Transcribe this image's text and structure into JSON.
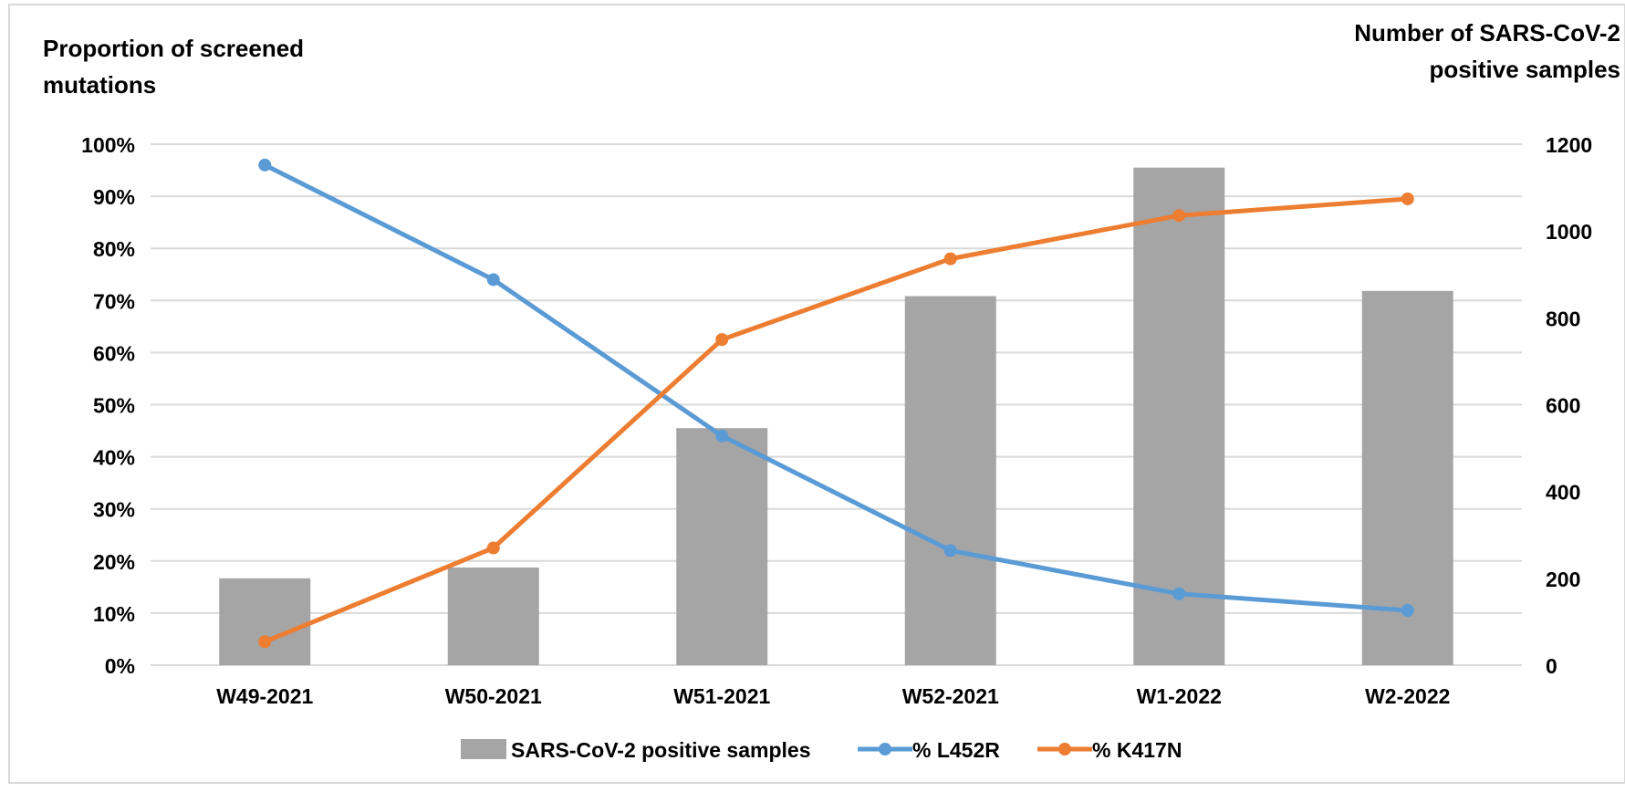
{
  "chart_data": {
    "type": "bar",
    "categories": [
      "W49-2021",
      "W50-2021",
      "W51-2021",
      "W52-2021",
      "W1-2022",
      "W2-2022"
    ],
    "series": [
      {
        "name": "SARS-CoV-2 positive samples",
        "type": "bar",
        "axis": "right",
        "values": [
          200,
          225,
          546,
          850,
          1146,
          862
        ]
      },
      {
        "name": "% L452R",
        "type": "line",
        "axis": "left",
        "values": [
          96,
          74,
          44,
          22,
          13.7,
          10.5
        ]
      },
      {
        "name": "% K417N",
        "type": "line",
        "axis": "left",
        "values": [
          4.5,
          22.5,
          62.5,
          78,
          86.3,
          89.5
        ]
      }
    ],
    "y_left": {
      "label_lines": [
        "Proportion of screened",
        "mutations"
      ],
      "ylim": [
        0,
        100
      ],
      "ticks": [
        "0%",
        "10%",
        "20%",
        "30%",
        "40%",
        "50%",
        "60%",
        "70%",
        "80%",
        "90%",
        "100%"
      ]
    },
    "y_right": {
      "label_lines": [
        "Number of SARS-CoV-2",
        "positive samples"
      ],
      "ylim": [
        0,
        1200
      ],
      "ticks": [
        "0",
        "200",
        "400",
        "600",
        "800",
        "1000",
        "1200"
      ]
    },
    "grid": true,
    "legend_position": "bottom",
    "colors": {
      "bar": "#A5A5A5",
      "L452R": "#5B9BD5",
      "K417N": "#ED7D31",
      "gridline": "#D9D9D9",
      "border": "#D9D9D9"
    }
  }
}
